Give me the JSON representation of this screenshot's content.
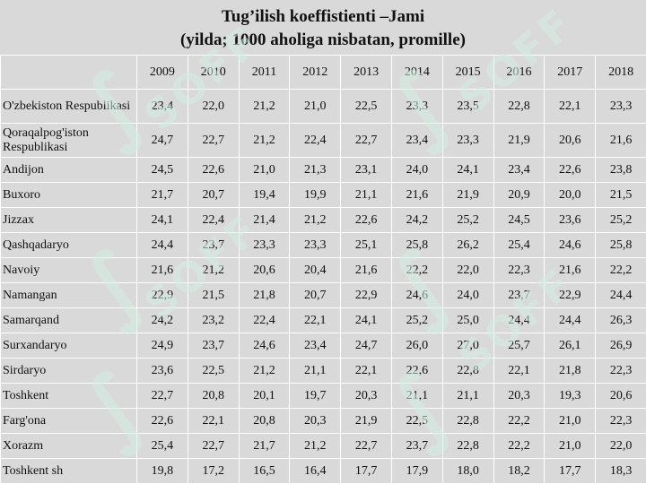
{
  "title": {
    "line1": "Tug’ilish koeffistienti –Jami",
    "line2": "(yilda; 1000 aholiga nisbatan, promille)"
  },
  "watermark": {
    "text": "SOFF"
  },
  "table": {
    "corner": "",
    "years": [
      "2009",
      "2010",
      "2011",
      "2012",
      "2013",
      "2014",
      "2015",
      "2016",
      "2017",
      "2018"
    ],
    "rows": [
      {
        "region": "O'zbekiston Respublikasi",
        "values": [
          "23,4",
          "22,0",
          "21,2",
          "21,0",
          "22,5",
          "23,3",
          "23,5",
          "22,8",
          "22,1",
          "23,3"
        ]
      },
      {
        "region": "Qoraqalpog'iston Respublikasi",
        "values": [
          "24,7",
          "22,7",
          "21,2",
          "22,4",
          "22,7",
          "23,4",
          "23,3",
          "21,9",
          "20,6",
          "21,6"
        ]
      },
      {
        "region": "Andijon",
        "values": [
          "24,5",
          "22,6",
          "21,0",
          "21,3",
          "23,1",
          "24,0",
          "24,1",
          "23,4",
          "22,6",
          "23,8"
        ]
      },
      {
        "region": "Buxoro",
        "values": [
          "21,7",
          "20,7",
          "19,4",
          "19,9",
          "21,1",
          "21,6",
          "21,9",
          "20,9",
          "20,0",
          "21,5"
        ]
      },
      {
        "region": "Jizzax",
        "values": [
          "24,1",
          "22,4",
          "21,4",
          "21,2",
          "22,6",
          "24,2",
          "25,2",
          "24,5",
          "23,6",
          "25,2"
        ]
      },
      {
        "region": "Qashqadaryo",
        "values": [
          "24,4",
          "23,7",
          "23,3",
          "23,3",
          "25,1",
          "25,8",
          "26,2",
          "25,4",
          "24,6",
          "25,8"
        ]
      },
      {
        "region": "Navoiy",
        "values": [
          "21,6",
          "21,2",
          "20,6",
          "20,4",
          "21,6",
          "22,2",
          "22,0",
          "22,3",
          "21,6",
          "22,2"
        ]
      },
      {
        "region": "Namangan",
        "values": [
          "22,9",
          "21,5",
          "21,8",
          "20,7",
          "22,9",
          "24,6",
          "24,0",
          "23,7",
          "22,9",
          "24,4"
        ]
      },
      {
        "region": "Samarqand",
        "values": [
          "24,2",
          "23,2",
          "22,4",
          "22,1",
          "24,1",
          "25,2",
          "25,0",
          "24,4",
          "24,4",
          "26,3"
        ]
      },
      {
        "region": "Surxandaryo",
        "values": [
          "24,9",
          "23,7",
          "24,6",
          "23,4",
          "24,7",
          "26,0",
          "27,0",
          "25,7",
          "26,1",
          "26,9"
        ]
      },
      {
        "region": "Sirdaryo",
        "values": [
          "23,6",
          "22,5",
          "21,2",
          "21,1",
          "22,1",
          "22,6",
          "22,8",
          "22,1",
          "21,8",
          "22,3"
        ]
      },
      {
        "region": "Toshkent",
        "values": [
          "22,7",
          "20,8",
          "20,1",
          "19,7",
          "20,3",
          "21,1",
          "21,1",
          "20,3",
          "19,3",
          "20,6"
        ]
      },
      {
        "region": "Farg'ona",
        "values": [
          "22,6",
          "22,1",
          "20,8",
          "20,3",
          "21,9",
          "22,5",
          "22,8",
          "22,2",
          "21,0",
          "22,3"
        ]
      },
      {
        "region": "Xorazm",
        "values": [
          "25,4",
          "22,7",
          "21,7",
          "21,2",
          "22,7",
          "23,7",
          "22,8",
          "22,2",
          "21,0",
          "22,0"
        ]
      },
      {
        "region": "Toshkent sh",
        "values": [
          "19,8",
          "17,2",
          "16,5",
          "16,4",
          "17,7",
          "17,9",
          "18,0",
          "18,2",
          "17,7",
          "18,3"
        ]
      }
    ]
  }
}
